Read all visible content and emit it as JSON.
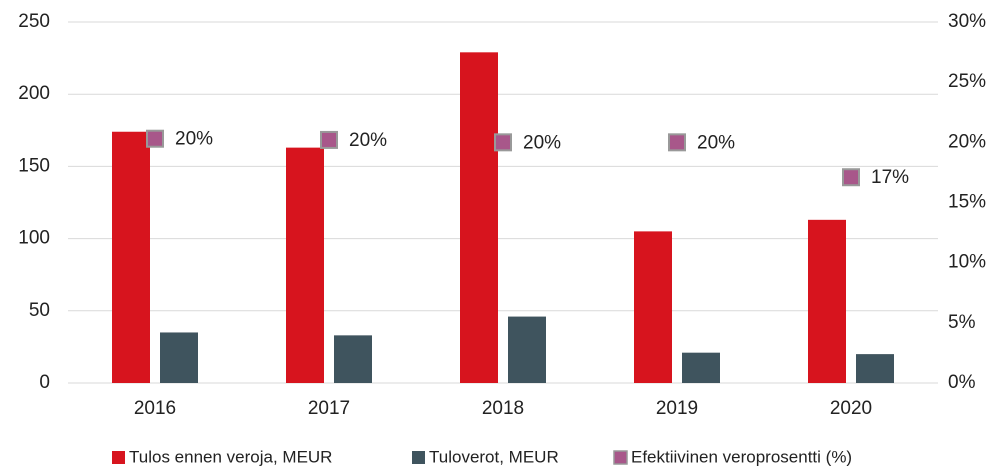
{
  "chart_data": {
    "type": "bar",
    "categories": [
      "2016",
      "2017",
      "2018",
      "2019",
      "2020"
    ],
    "series": [
      {
        "name": "Tulos ennen veroja, MEUR",
        "color": "#d7141e",
        "values": [
          174,
          163,
          229,
          105,
          113
        ]
      },
      {
        "name": "Tuloverot, MEUR",
        "color": "#3f545e",
        "values": [
          35,
          33,
          46,
          21,
          20
        ]
      },
      {
        "name": "Efektiivinen veroprosentti (%)",
        "color": "#a8578a",
        "type": "scatter",
        "axis": "y2",
        "values": [
          20.3,
          20.2,
          20,
          20,
          17.1
        ],
        "value_labels": [
          "20%",
          "20%",
          "20%",
          "20%",
          "17%"
        ]
      }
    ],
    "ylim": [
      0,
      250
    ],
    "yticks": [
      0,
      50,
      100,
      150,
      200,
      250
    ],
    "y2lim": [
      0,
      30
    ],
    "y2ticks": [
      {
        "value": 0,
        "label": "0%"
      },
      {
        "value": 5,
        "label": "5%"
      },
      {
        "value": 10,
        "label": "10%"
      },
      {
        "value": 15,
        "label": "15%"
      },
      {
        "value": 20,
        "label": "20%"
      },
      {
        "value": 25,
        "label": "25%"
      },
      {
        "value": 30,
        "label": "30%"
      }
    ],
    "grid": true,
    "legend": "bottom"
  }
}
